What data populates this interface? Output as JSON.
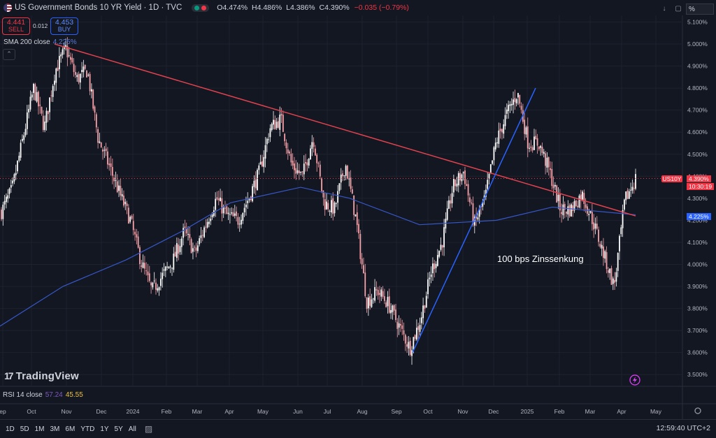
{
  "header": {
    "title": "US Government Bonds 10 YR Yield · 1D · TVC",
    "ohlc": {
      "o_key": "O",
      "o": "4.474%",
      "h_key": "H",
      "h": "4.486%",
      "l_key": "L",
      "l": "4.386%",
      "c_key": "C",
      "c": "4.390%",
      "change": "−0.035 (−0.79%)"
    }
  },
  "trade": {
    "sell_price": "4.441",
    "sell_label": "SELL",
    "spread": "0.012",
    "buy_price": "4.453",
    "buy_label": "BUY"
  },
  "indicators": {
    "sma_label": "SMA 200 close",
    "sma_value": "4.225%",
    "rsi_label": "RSI 14 close",
    "rsi_value1": "57.24",
    "rsi_value2": "45.55"
  },
  "toolbar": {
    "scale_mode": "%"
  },
  "brand": "TradingView",
  "price_tags": {
    "symbol": "US10Y",
    "last_price": "4.390%",
    "countdown": "10:30:19",
    "sma_tag": "4.225%"
  },
  "bottom_bar": {
    "ranges": [
      "1D",
      "5D",
      "1M",
      "3M",
      "6M",
      "YTD",
      "1Y",
      "5Y",
      "All"
    ],
    "clock": "12:59:40 UTC+2"
  },
  "chart_data": {
    "type": "candlestick",
    "title": "US Government Bonds 10 YR Yield",
    "y_unit": "%",
    "ylim": [
      3.45,
      5.13
    ],
    "y_ticks": [
      "5.100%",
      "5.000%",
      "4.900%",
      "4.800%",
      "4.700%",
      "4.600%",
      "4.500%",
      "4.400%",
      "4.300%",
      "4.200%",
      "4.100%",
      "4.000%",
      "3.900%",
      "3.800%",
      "3.700%",
      "3.600%",
      "3.500%"
    ],
    "x_ticks": [
      "ep",
      "Oct",
      "Nov",
      "Dec",
      "2024",
      "Feb",
      "Mar",
      "Apr",
      "May",
      "Jun",
      "Jul",
      "Aug",
      "Sep",
      "Oct",
      "Nov",
      "Dec",
      "2025",
      "Feb",
      "Mar",
      "Apr",
      "May"
    ],
    "colors": {
      "up": "#ffffff",
      "down": "#f7a1a8",
      "sma": "#3657c8",
      "trend_down": "#e0424e",
      "trend_up": "#2962ff",
      "last_line": "#f23645",
      "background": "#131722"
    },
    "closes_path": [
      {
        "x": "Sep",
        "y": 4.24
      },
      {
        "x": "Sep",
        "y": 4.34
      },
      {
        "x": "Sep",
        "y": 4.57
      },
      {
        "x": "Sep",
        "y": 4.8
      },
      {
        "x": "Oct",
        "y": 4.62
      },
      {
        "x": "Oct",
        "y": 4.88
      },
      {
        "x": "Oct",
        "y": 4.98
      },
      {
        "x": "Oct",
        "y": 4.84
      },
      {
        "x": "Nov",
        "y": 4.88
      },
      {
        "x": "Nov",
        "y": 4.57
      },
      {
        "x": "Nov",
        "y": 4.45
      },
      {
        "x": "Nov",
        "y": 4.32
      },
      {
        "x": "Dec",
        "y": 4.2
      },
      {
        "x": "Dec",
        "y": 4.01
      },
      {
        "x": "Dec",
        "y": 3.88
      },
      {
        "x": "2024",
        "y": 3.95
      },
      {
        "x": "2024",
        "y": 4.02
      },
      {
        "x": "Jan",
        "y": 4.15
      },
      {
        "x": "Jan",
        "y": 4.05
      },
      {
        "x": "Feb",
        "y": 4.18
      },
      {
        "x": "Feb",
        "y": 4.3
      },
      {
        "x": "Mar",
        "y": 4.22
      },
      {
        "x": "Mar",
        "y": 4.2
      },
      {
        "x": "Mar",
        "y": 4.3
      },
      {
        "x": "Apr",
        "y": 4.42
      },
      {
        "x": "Apr",
        "y": 4.62
      },
      {
        "x": "May",
        "y": 4.66
      },
      {
        "x": "May",
        "y": 4.45
      },
      {
        "x": "May",
        "y": 4.4
      },
      {
        "x": "Jun",
        "y": 4.58
      },
      {
        "x": "Jun",
        "y": 4.28
      },
      {
        "x": "Jun",
        "y": 4.25
      },
      {
        "x": "Jul",
        "y": 4.46
      },
      {
        "x": "Jul",
        "y": 4.2
      },
      {
        "x": "Aug",
        "y": 3.83
      },
      {
        "x": "Aug",
        "y": 3.88
      },
      {
        "x": "Aug",
        "y": 3.82
      },
      {
        "x": "Sep",
        "y": 3.72
      },
      {
        "x": "Sep",
        "y": 3.62
      },
      {
        "x": "Sep",
        "y": 3.75
      },
      {
        "x": "Oct",
        "y": 3.97
      },
      {
        "x": "Oct",
        "y": 4.1
      },
      {
        "x": "Nov",
        "y": 4.35
      },
      {
        "x": "Nov",
        "y": 4.42
      },
      {
        "x": "Dec",
        "y": 4.18
      },
      {
        "x": "Dec",
        "y": 4.3
      },
      {
        "x": "Dec",
        "y": 4.55
      },
      {
        "x": "2025",
        "y": 4.68
      },
      {
        "x": "Jan",
        "y": 4.78
      },
      {
        "x": "Jan",
        "y": 4.55
      },
      {
        "x": "Feb",
        "y": 4.55
      },
      {
        "x": "Feb",
        "y": 4.42
      },
      {
        "x": "Mar",
        "y": 4.25
      },
      {
        "x": "Mar",
        "y": 4.25
      },
      {
        "x": "Mar",
        "y": 4.32
      },
      {
        "x": "Apr",
        "y": 4.2
      },
      {
        "x": "Apr",
        "y": 4.05
      },
      {
        "x": "Apr",
        "y": 3.9
      },
      {
        "x": "Apr",
        "y": 4.29
      },
      {
        "x": "Apr",
        "y": 4.39
      }
    ],
    "sma_200": [
      {
        "x": "Sep",
        "y": 3.72
      },
      {
        "x": "Nov",
        "y": 3.9
      },
      {
        "x": "Jan",
        "y": 4.02
      },
      {
        "x": "Mar",
        "y": 4.15
      },
      {
        "x": "May",
        "y": 4.28
      },
      {
        "x": "Jul",
        "y": 4.35
      },
      {
        "x": "Aug",
        "y": 4.3
      },
      {
        "x": "Oct",
        "y": 4.18
      },
      {
        "x": "Dec",
        "y": 4.2
      },
      {
        "x": "Feb",
        "y": 4.26
      },
      {
        "x": "Apr",
        "y": 4.225
      }
    ],
    "trendline_down": {
      "from": {
        "x": "Oct",
        "y": 5.0
      },
      "to": {
        "x": "Apr",
        "y": 4.22
      }
    },
    "trendline_up": {
      "from": {
        "x": "Sep",
        "y": 3.6
      },
      "to": {
        "x": "Jan",
        "y": 4.8
      }
    },
    "annotation": "100 bps Zinssenkung",
    "last_price": 4.39
  }
}
